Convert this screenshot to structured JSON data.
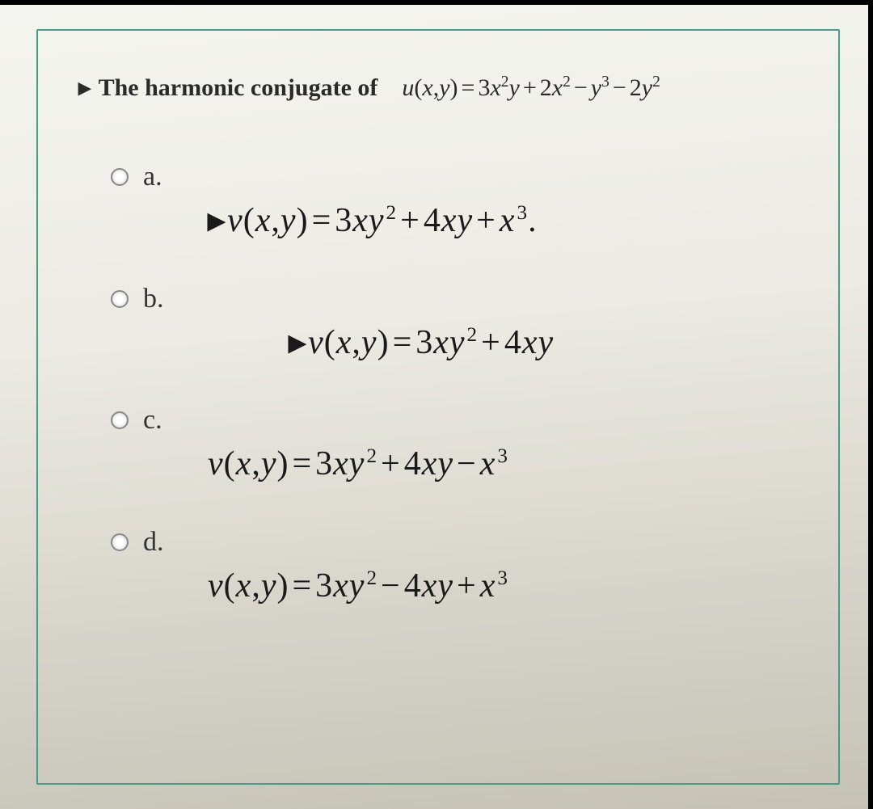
{
  "question": {
    "prompt_bold": "The harmonic conjugate of",
    "prompt_function": "u(x,y) = 3x²y + 2x² − y³ − 2y²",
    "function_parts": {
      "lhs_var": "u",
      "args": "(x, y)",
      "eq": "=",
      "terms": [
        "3x²y",
        "+",
        "2x²",
        "−",
        "y³",
        "−",
        "2y²"
      ]
    }
  },
  "options": [
    {
      "letter": "a.",
      "prefix": "▸",
      "formula_text": "v(x, y) = 3xy² + 4xy + x³.",
      "indent": "normal"
    },
    {
      "letter": "b.",
      "prefix": "▸",
      "formula_text": "v(x, y) = 3xy² + 4xy",
      "indent": "more"
    },
    {
      "letter": "c.",
      "prefix": "",
      "formula_text": "v(x, y) = 3xy² + 4xy − x³",
      "indent": "normal"
    },
    {
      "letter": "d.",
      "prefix": "",
      "formula_text": "v(x, y) = 3xy² − 4xy + x³",
      "indent": "normal"
    }
  ],
  "styling": {
    "border_color": "#4a9a8a",
    "page_bg_top": "#f5f5f0",
    "page_bg_bottom": "#c5c2b5",
    "text_color": "#2a2a2a",
    "prompt_fontsize": 30,
    "letter_fontsize": 34,
    "formula_fontsize": 42,
    "radio_border": "#888"
  }
}
